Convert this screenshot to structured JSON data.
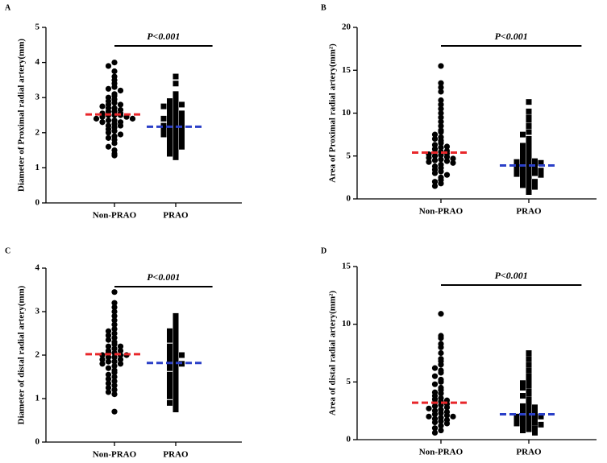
{
  "chart_data": [
    {
      "type": "dotplot",
      "panel": "A",
      "ylabel": "Diameter of Proximal radial artery(mm)",
      "annotation": "P<0.001",
      "categories": [
        "Non-PRAO",
        "PRAO"
      ],
      "ylim": [
        0,
        5
      ],
      "yticks": [
        0,
        1,
        2,
        3,
        4,
        5
      ],
      "groups": [
        {
          "marker": "circle",
          "color": "#000000",
          "mean": 2.52,
          "mean_color": "#e8262a",
          "values": [
            4.0,
            3.9,
            3.75,
            3.6,
            3.5,
            3.4,
            3.3,
            3.25,
            3.2,
            3.1,
            3.05,
            3.0,
            2.95,
            2.9,
            2.85,
            2.8,
            2.8,
            2.75,
            2.7,
            2.7,
            2.65,
            2.6,
            2.6,
            2.55,
            2.55,
            2.5,
            2.5,
            2.5,
            2.45,
            2.45,
            2.4,
            2.4,
            2.35,
            2.35,
            2.3,
            2.3,
            2.25,
            2.2,
            2.2,
            2.15,
            2.1,
            2.05,
            2.0,
            1.95,
            1.9,
            1.85,
            1.8,
            1.7,
            1.6,
            1.5,
            1.4,
            1.35
          ]
        },
        {
          "marker": "square",
          "color": "#000000",
          "mean": 2.17,
          "mean_color": "#2a3fc7",
          "values": [
            3.6,
            3.4,
            3.1,
            3.0,
            2.95,
            2.9,
            2.85,
            2.8,
            2.8,
            2.75,
            2.7,
            2.65,
            2.6,
            2.6,
            2.55,
            2.5,
            2.45,
            2.4,
            2.4,
            2.35,
            2.3,
            2.3,
            2.25,
            2.2,
            2.2,
            2.2,
            2.15,
            2.15,
            2.1,
            2.1,
            2.05,
            2.0,
            2.0,
            1.95,
            1.9,
            1.9,
            1.85,
            1.8,
            1.8,
            1.75,
            1.7,
            1.65,
            1.6,
            1.55,
            1.5,
            1.45,
            1.4,
            1.3
          ]
        }
      ]
    },
    {
      "type": "dotplot",
      "panel": "B",
      "ylabel": "Area of Proximal  radial artery(mm²)",
      "annotation": "P<0.001",
      "categories": [
        "Non-PRAO",
        "PRAO"
      ],
      "ylim": [
        0,
        20
      ],
      "yticks": [
        0,
        5,
        10,
        15,
        20
      ],
      "groups": [
        {
          "marker": "circle",
          "color": "#000000",
          "mean": 5.4,
          "mean_color": "#e8262a",
          "values": [
            15.5,
            13.5,
            13,
            12.5,
            11.5,
            11,
            10.5,
            10,
            9.5,
            9,
            8.5,
            8,
            7.8,
            7.5,
            7.2,
            7,
            6.8,
            6.5,
            6.3,
            6.1,
            6,
            5.8,
            5.6,
            5.5,
            5.4,
            5.3,
            5.2,
            5.1,
            5,
            4.9,
            4.8,
            4.7,
            4.6,
            4.5,
            4.4,
            4.3,
            4.2,
            4,
            3.8,
            3.6,
            3.4,
            3.2,
            3,
            2.8,
            2.5,
            2.2,
            2,
            1.8,
            1.5
          ]
        },
        {
          "marker": "square",
          "color": "#000000",
          "mean": 3.9,
          "mean_color": "#2a3fc7",
          "values": [
            11.3,
            10.2,
            9.5,
            9.2,
            8.5,
            7.8,
            7.5,
            7,
            6.5,
            6.2,
            6,
            5.8,
            5.5,
            5.2,
            5,
            4.8,
            4.6,
            4.5,
            4.4,
            4.3,
            4.2,
            4.1,
            4,
            3.9,
            3.8,
            3.7,
            3.6,
            3.5,
            3.4,
            3.3,
            3.2,
            3.1,
            3,
            2.9,
            2.8,
            2.6,
            2.5,
            2.3,
            2.1,
            2,
            1.8,
            1.6,
            1.4,
            1.2,
            0.8
          ]
        }
      ]
    },
    {
      "type": "dotplot",
      "panel": "C",
      "ylabel": "Diameter of distal  radial artery(mm)",
      "annotation": "P<0.001",
      "categories": [
        "Non-PRAO",
        "PRAO"
      ],
      "ylim": [
        0,
        4
      ],
      "yticks": [
        0,
        1,
        2,
        3,
        4
      ],
      "groups": [
        {
          "marker": "circle",
          "color": "#000000",
          "mean": 2.02,
          "mean_color": "#e8262a",
          "values": [
            3.45,
            3.2,
            3.1,
            3.0,
            2.9,
            2.8,
            2.7,
            2.6,
            2.55,
            2.5,
            2.45,
            2.4,
            2.35,
            2.3,
            2.25,
            2.2,
            2.2,
            2.15,
            2.1,
            2.1,
            2.05,
            2.05,
            2.0,
            2.0,
            2.0,
            1.95,
            1.95,
            1.9,
            1.9,
            1.85,
            1.85,
            1.8,
            1.8,
            1.75,
            1.7,
            1.65,
            1.6,
            1.55,
            1.5,
            1.45,
            1.4,
            1.35,
            1.3,
            1.25,
            1.2,
            1.15,
            1.1,
            0.7
          ]
        },
        {
          "marker": "square",
          "color": "#000000",
          "mean": 1.82,
          "mean_color": "#2a3fc7",
          "values": [
            2.9,
            2.85,
            2.75,
            2.7,
            2.6,
            2.55,
            2.5,
            2.45,
            2.4,
            2.35,
            2.3,
            2.25,
            2.2,
            2.15,
            2.1,
            2.05,
            2.0,
            2.0,
            1.95,
            1.9,
            1.85,
            1.8,
            1.8,
            1.75,
            1.7,
            1.65,
            1.6,
            1.55,
            1.5,
            1.45,
            1.4,
            1.35,
            1.3,
            1.25,
            1.2,
            1.15,
            1.1,
            1.05,
            1.0,
            0.95,
            0.9,
            0.85,
            0.75
          ]
        }
      ]
    },
    {
      "type": "dotplot",
      "panel": "D",
      "ylabel": "Area of distal radial artery(mm²)",
      "annotation": "P<0.001",
      "categories": [
        "Non-PRAO",
        "PRAO"
      ],
      "ylim": [
        0,
        15
      ],
      "yticks": [
        0,
        5,
        10,
        15
      ],
      "groups": [
        {
          "marker": "circle",
          "color": "#000000",
          "mean": 3.2,
          "mean_color": "#e8262a",
          "values": [
            10.9,
            9,
            8.8,
            8.3,
            8,
            7.5,
            7,
            6.8,
            6.5,
            6.2,
            6,
            5.8,
            5.5,
            5.2,
            5,
            4.8,
            4.5,
            4.3,
            4.1,
            4,
            3.8,
            3.6,
            3.5,
            3.4,
            3.3,
            3.2,
            3.1,
            3,
            2.9,
            2.8,
            2.7,
            2.6,
            2.5,
            2.4,
            2.3,
            2.2,
            2.1,
            2,
            2,
            1.9,
            1.8,
            1.7,
            1.6,
            1.5,
            1.4,
            1.2,
            1,
            0.8,
            0.6
          ]
        },
        {
          "marker": "square",
          "color": "#000000",
          "mean": 2.2,
          "mean_color": "#2a3fc7",
          "values": [
            7.5,
            7,
            6.5,
            6,
            5.5,
            5.2,
            5,
            4.9,
            4.7,
            4.5,
            4.2,
            4,
            3.8,
            3.5,
            3.3,
            3,
            2.9,
            2.8,
            2.6,
            2.5,
            2.4,
            2.3,
            2.2,
            2.1,
            2,
            2,
            1.9,
            1.8,
            1.8,
            1.7,
            1.6,
            1.5,
            1.5,
            1.4,
            1.3,
            1.2,
            1.1,
            1,
            0.9,
            0.8,
            0.6
          ]
        }
      ]
    }
  ]
}
